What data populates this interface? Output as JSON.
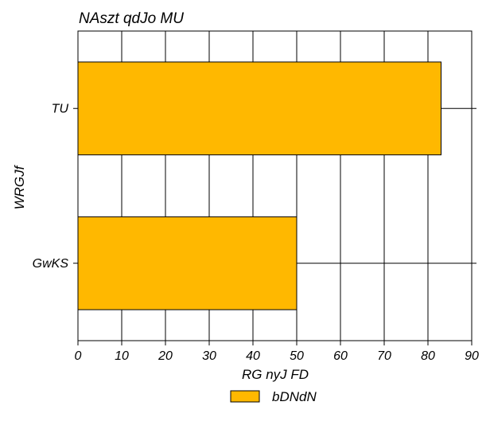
{
  "chart_data": {
    "type": "bar",
    "orientation": "horizontal",
    "title": "NAszt qdJo MU",
    "xlabel": "RG nyJ FD",
    "ylabel": "WRGJf",
    "categories": [
      "TU",
      "GwKS"
    ],
    "series": [
      {
        "name": "bDNdN",
        "values": [
          83,
          50
        ],
        "color": "#FFB800"
      }
    ],
    "xlim": [
      0,
      90
    ],
    "xticks": [
      0,
      10,
      20,
      30,
      40,
      50,
      60,
      70,
      80,
      90
    ],
    "grid": "x",
    "legend": "bottom-center"
  }
}
